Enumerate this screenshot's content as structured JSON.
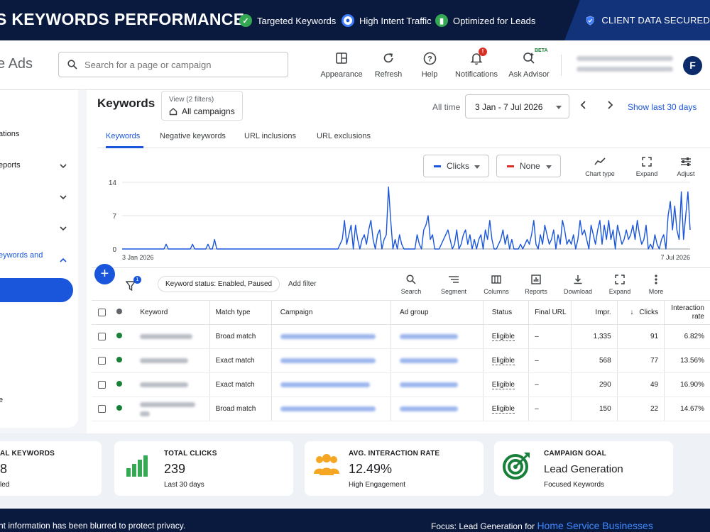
{
  "banner": {
    "title": "S KEYWORDS PERFORMANCE",
    "features": [
      {
        "label": "Targeted Keywords",
        "icon": "check-circle-icon",
        "color": "#34a853"
      },
      {
        "label": "High Intent Traffic",
        "icon": "target-icon",
        "color": "#3d7bff"
      },
      {
        "label": "Optimized for Leads",
        "icon": "bar-chart-icon",
        "color": "#34a853"
      }
    ],
    "secured": "CLIENT DATA SECURED"
  },
  "header": {
    "app_name": "e Ads",
    "search_placeholder": "Search for a page or campaign",
    "tools": [
      {
        "label": "Appearance",
        "icon": "appearance-icon"
      },
      {
        "label": "Refresh",
        "icon": "refresh-icon"
      },
      {
        "label": "Help",
        "icon": "help-icon"
      },
      {
        "label": "Notifications",
        "icon": "bell-icon",
        "badge": "!"
      },
      {
        "label": "Ask Advisor",
        "icon": "advisor-icon",
        "tag": "BETA"
      }
    ],
    "avatar_initial": "F"
  },
  "sidebar": {
    "items": [
      {
        "label": "ations"
      },
      {
        "label": "eports"
      },
      {
        "label": "eywords and"
      },
      {
        "label": "e"
      }
    ]
  },
  "main": {
    "title": "Keywords",
    "view_filters": "View (2 filters)",
    "view_scope": "All campaigns",
    "time_label": "All time",
    "date_range": "3 Jan - 7 Jul 2026",
    "show_last": "Show last 30 days",
    "tabs": [
      "Keywords",
      "Negative keywords",
      "URL inclusions",
      "URL exclusions"
    ],
    "metric1": "Clicks",
    "metric2": "None",
    "chart_tools": [
      "Chart type",
      "Expand",
      "Adjust"
    ]
  },
  "chart_data": {
    "type": "line",
    "x_start_label": "3 Jan 2026",
    "x_end_label": "7 Jul 2026",
    "yticks": [
      0,
      7,
      14
    ],
    "ylim": [
      0,
      14
    ],
    "series": [
      {
        "color": "#1a56db",
        "values": [
          0,
          0,
          0,
          0,
          0,
          0,
          0,
          0,
          0,
          0,
          0,
          0,
          0,
          0,
          0,
          0,
          0,
          0,
          0,
          0,
          1,
          0,
          0,
          0,
          0,
          0,
          0,
          0,
          0,
          0,
          0,
          0,
          1,
          0,
          0,
          0,
          0,
          0,
          0,
          1,
          0,
          0,
          2,
          0,
          0,
          0,
          0,
          0,
          0,
          0,
          0,
          0,
          0,
          0,
          0,
          0,
          0,
          0,
          0,
          0,
          0,
          0,
          0,
          0,
          0,
          0,
          0,
          0,
          0,
          0,
          0,
          0,
          0,
          0,
          0,
          0,
          0,
          0,
          0,
          0,
          0,
          0,
          0,
          0,
          0,
          0,
          0,
          0,
          0,
          0,
          0,
          0,
          0,
          0,
          0,
          0,
          0,
          0,
          0,
          1,
          2,
          6,
          1,
          3,
          5,
          0,
          5,
          2,
          0,
          2,
          3,
          1,
          4,
          6,
          2,
          0,
          3,
          4,
          0,
          2,
          3,
          13,
          6,
          0,
          2,
          0,
          3,
          1,
          0,
          0,
          0,
          0,
          0,
          0,
          3,
          1,
          0,
          4,
          5,
          7,
          2,
          3,
          0,
          0,
          0,
          1,
          2,
          3,
          4,
          2,
          0,
          1,
          4,
          0,
          1,
          3,
          4,
          1,
          3,
          0,
          2,
          0,
          2,
          3,
          0,
          4,
          2,
          6,
          2,
          0,
          0,
          1,
          2,
          4,
          1,
          3,
          0,
          2,
          0,
          0,
          0,
          1,
          0,
          1,
          2,
          1,
          3,
          6,
          1,
          0,
          3,
          1,
          5,
          3,
          1,
          2,
          4,
          0,
          3,
          1,
          6,
          4,
          1,
          2,
          1,
          3,
          0,
          2,
          6,
          3,
          4,
          2,
          0,
          5,
          3,
          1,
          4,
          6,
          1,
          5,
          2,
          6,
          2,
          4,
          0,
          5,
          3,
          1,
          2,
          4,
          2,
          3,
          5,
          2,
          6,
          3,
          1,
          2,
          5,
          0,
          1,
          0,
          3,
          1,
          0,
          2,
          3,
          0,
          7,
          10,
          4,
          9,
          4,
          2,
          12,
          2,
          7,
          12,
          4
        ]
      }
    ]
  },
  "toolbar": {
    "status_chip": "Keyword status: Enabled, Paused",
    "add_filter": "Add filter",
    "tools": [
      {
        "label": "Search",
        "icon": "search-icon"
      },
      {
        "label": "Segment",
        "icon": "segment-icon"
      },
      {
        "label": "Columns",
        "icon": "columns-icon"
      },
      {
        "label": "Reports",
        "icon": "reports-icon"
      },
      {
        "label": "Download",
        "icon": "download-icon"
      },
      {
        "label": "Expand",
        "icon": "expand-icon"
      },
      {
        "label": "More",
        "icon": "more-icon"
      }
    ]
  },
  "table": {
    "headers": {
      "keyword": "Keyword",
      "match": "Match type",
      "campaign": "Campaign",
      "adgroup": "Ad group",
      "status": "Status",
      "final_url": "Final URL",
      "impr": "Impr.",
      "clicks": "Clicks",
      "rate": "Interaction rate"
    },
    "rows": [
      {
        "match": "Broad match",
        "status": "Eligible",
        "final_url": "–",
        "impr": "1,335",
        "clicks": "91",
        "rate": "6.82%"
      },
      {
        "match": "Exact match",
        "status": "Eligible",
        "final_url": "–",
        "impr": "568",
        "clicks": "77",
        "rate": "13.56%"
      },
      {
        "match": "Exact match",
        "status": "Eligible",
        "final_url": "–",
        "impr": "290",
        "clicks": "49",
        "rate": "16.90%"
      },
      {
        "match": "Broad match",
        "status": "Eligible",
        "final_url": "–",
        "impr": "150",
        "clicks": "22",
        "rate": "14.67%"
      }
    ]
  },
  "stats": [
    {
      "label": "AL KEYWORDS",
      "value": "8",
      "sub": "led"
    },
    {
      "label": "TOTAL CLICKS",
      "value": "239",
      "sub": "Last 30 days",
      "icon": "bar-chart-icon",
      "color": "#34a853"
    },
    {
      "label": "AVG. INTERACTION RATE",
      "value": "12.49%",
      "sub": "High Engagement",
      "icon": "people-icon",
      "color": "#f5a623"
    },
    {
      "label": "CAMPAIGN GOAL",
      "value": "Lead Generation",
      "sub": "Focused Keywords",
      "icon": "target-icon",
      "color": "#188038"
    }
  ],
  "footer": {
    "left": "nt information has been blurred to protect privacy.",
    "focus_prefix": "Focus: Lead Generation for",
    "focus_highlight": "Home Service Businesses"
  }
}
